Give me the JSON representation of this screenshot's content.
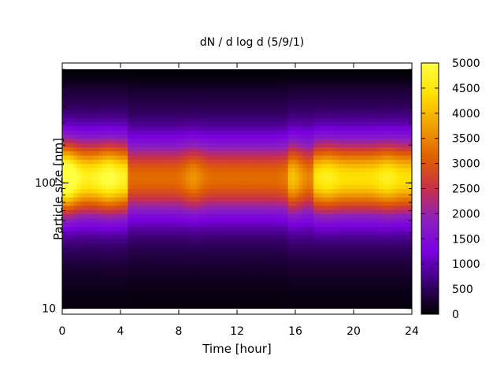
{
  "chart_data": {
    "type": "heatmap",
    "title": "dN / d log d (5/9/1)",
    "xlabel": "Time [hour]",
    "ylabel": "Particle size [nm]",
    "x_axis": {
      "range": [
        0,
        24
      ],
      "ticks": [
        "0",
        "4",
        "8",
        "12",
        "16",
        "20",
        "24"
      ]
    },
    "y_axis": {
      "scale": "log",
      "range": [
        9,
        900
      ],
      "ticks": [
        {
          "value": 10,
          "label": "10"
        },
        {
          "value": 100,
          "label": "100"
        }
      ]
    },
    "colorbar": {
      "range": [
        0,
        5000
      ],
      "ticks": [
        "0",
        "500",
        "1000",
        "1500",
        "2000",
        "2500",
        "3000",
        "3500",
        "4000",
        "4500",
        "5000"
      ],
      "colors": [
        "#000000",
        "#3a0070",
        "#7a00e0",
        "#8a20c0",
        "#c8304a",
        "#e06000",
        "#f0a000",
        "#ffe000",
        "#ffff40"
      ]
    },
    "grid": false,
    "legend": "none",
    "mode_peak_time_hour": [
      0.3,
      3.2,
      9.0,
      15.8,
      18.2,
      22.3
    ],
    "mode_peak_value": [
      4500,
      4000,
      3200,
      3000,
      3600,
      3600
    ]
  }
}
